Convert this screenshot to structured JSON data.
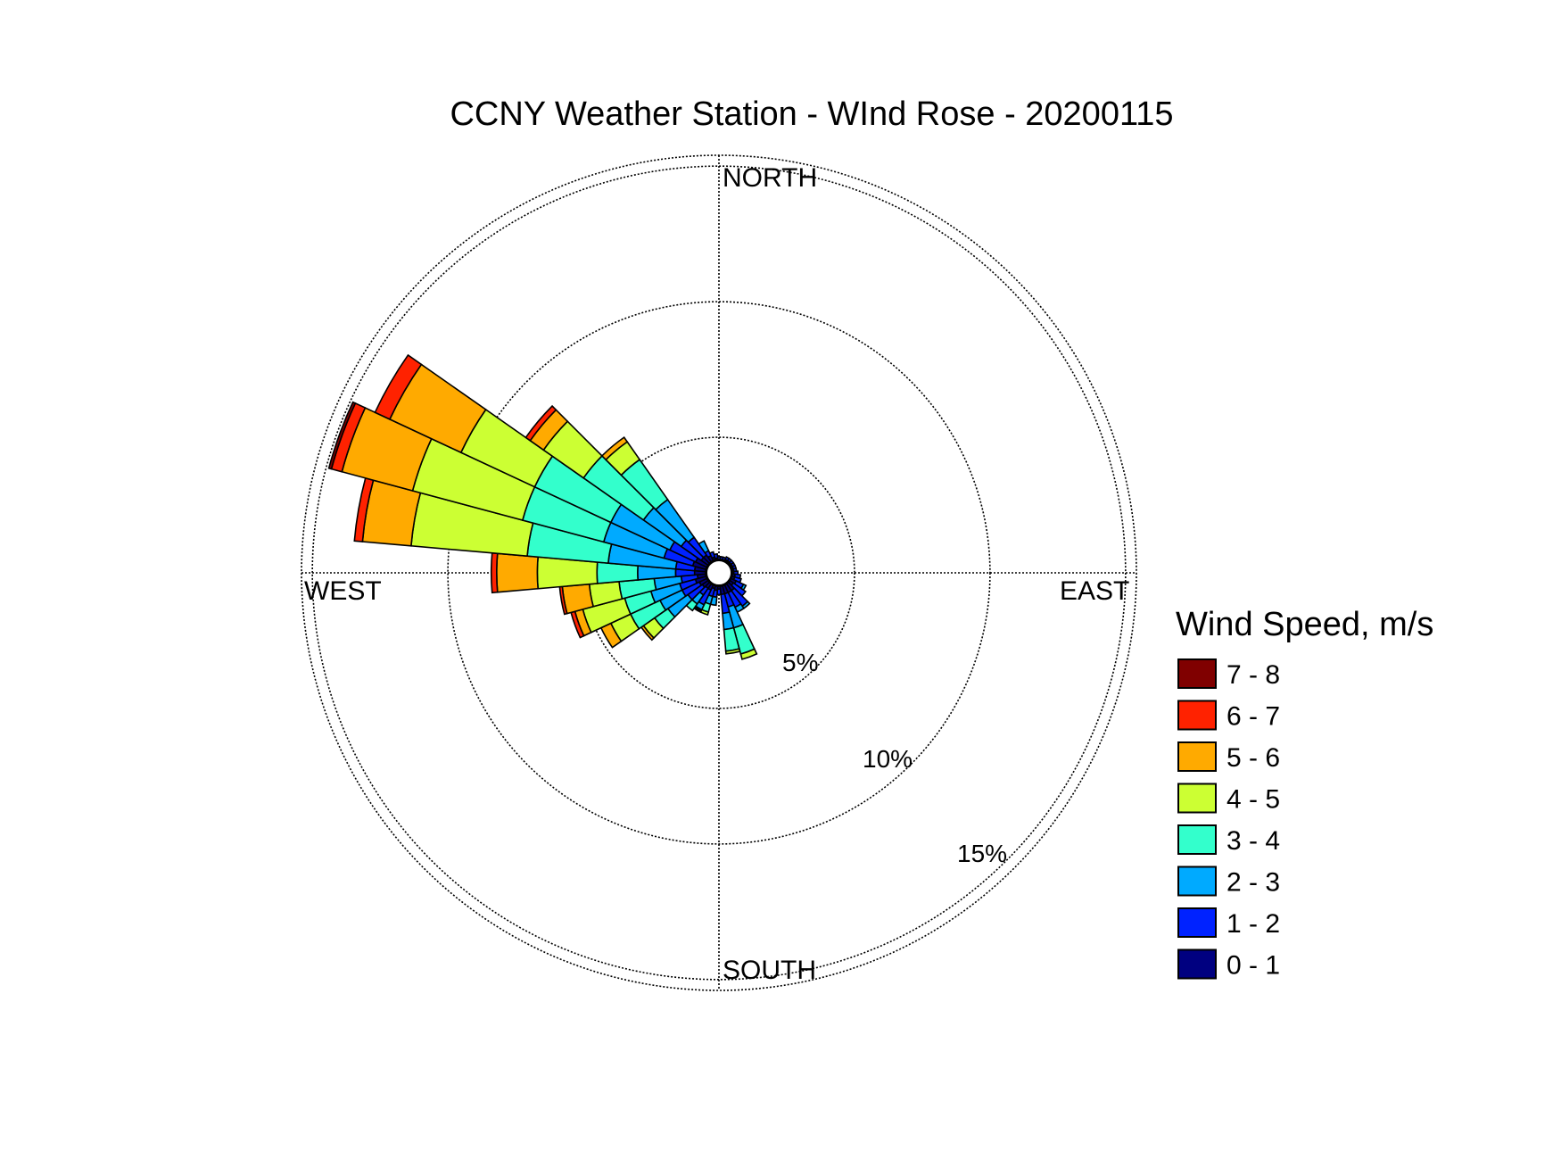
{
  "chart_data": {
    "type": "wind-rose",
    "title": "CCNY Weather Station - WInd Rose - 20200115",
    "directions": {
      "north": "NORTH",
      "south": "SOUTH",
      "east": "EAST",
      "west": "WEST"
    },
    "ring_values": [
      5,
      10,
      15
    ],
    "ring_labels": [
      "5%",
      "10%",
      "15%"
    ],
    "rmax": 15.4,
    "legend_title": "Wind Speed, m/s",
    "bins": [
      {
        "label": "0 - 1",
        "color": "#000080"
      },
      {
        "label": "1 - 2",
        "color": "#0022ff"
      },
      {
        "label": "2 - 3",
        "color": "#00aaff"
      },
      {
        "label": "3 - 4",
        "color": "#33ffcc"
      },
      {
        "label": "4 - 5",
        "color": "#ccff33"
      },
      {
        "label": "5 - 6",
        "color": "#ffaa00"
      },
      {
        "label": "6 - 7",
        "color": "#ff2200"
      },
      {
        "label": "7 - 8",
        "color": "#800000"
      }
    ],
    "sector_width_deg": 10,
    "sectors": [
      {
        "dir": 0,
        "cum": [
          0.5,
          0.6
        ]
      },
      {
        "dir": 10,
        "cum": [
          0.5,
          0.6
        ]
      },
      {
        "dir": 20,
        "cum": [
          0.5,
          0.6
        ]
      },
      {
        "dir": 30,
        "cum": [
          0.55,
          0.65
        ]
      },
      {
        "dir": 40,
        "cum": [
          0.55,
          0.65
        ]
      },
      {
        "dir": 50,
        "cum": [
          0.55,
          0.65
        ]
      },
      {
        "dir": 60,
        "cum": [
          0.55,
          0.65
        ]
      },
      {
        "dir": 70,
        "cum": [
          0.55,
          0.65
        ]
      },
      {
        "dir": 80,
        "cum": [
          0.55,
          0.65
        ]
      },
      {
        "dir": 90,
        "cum": [
          0.55,
          0.7
        ]
      },
      {
        "dir": 100,
        "cum": [
          0.6,
          0.8
        ]
      },
      {
        "dir": 110,
        "cum": [
          0.6,
          0.85
        ]
      },
      {
        "dir": 120,
        "cum": [
          0.7,
          1.0,
          1.1
        ]
      },
      {
        "dir": 130,
        "cum": [
          0.65,
          1.2
        ]
      },
      {
        "dir": 140,
        "cum": [
          0.8,
          1.5,
          1.6
        ]
      },
      {
        "dir": 150,
        "cum": [
          0.8,
          1.4,
          1.6
        ]
      },
      {
        "dir": 160,
        "cum": [
          0.8,
          1.3,
          2.1,
          3.1,
          3.3
        ]
      },
      {
        "dir": 170,
        "cum": [
          0.8,
          1.5,
          2.1,
          2.9,
          3.0
        ]
      },
      {
        "dir": 180,
        "cum": [
          0.6,
          0.8
        ]
      },
      {
        "dir": 190,
        "cum": [
          0.65,
          0.9,
          1.2
        ]
      },
      {
        "dir": 200,
        "cum": [
          0.6,
          0.9,
          1.2,
          1.5,
          1.6
        ]
      },
      {
        "dir": 210,
        "cum": [
          0.7,
          1.3,
          1.5,
          1.55,
          1.6
        ]
      },
      {
        "dir": 220,
        "cum": [
          0.7,
          1.0,
          1.4,
          1.7
        ]
      },
      {
        "dir": 230,
        "cum": [
          0.75,
          1.4,
          2.3,
          2.9,
          3.4,
          3.5
        ]
      },
      {
        "dir": 240,
        "cum": [
          0.8,
          1.5,
          2.4,
          3.6,
          4.4,
          4.8
        ]
      },
      {
        "dir": 250,
        "cum": [
          0.9,
          1.5,
          2.6,
          3.6,
          5.2,
          5.5,
          5.65
        ]
      },
      {
        "dir": 260,
        "cum": [
          0.8,
          1.4,
          2.4,
          3.7,
          4.8,
          5.8,
          5.9
        ]
      },
      {
        "dir": 270,
        "cum": [
          0.9,
          1.6,
          3.0,
          4.5,
          6.7,
          8.2,
          8.4
        ]
      },
      {
        "dir": 280,
        "cum": [
          0.9,
          1.6,
          4.1,
          7.1,
          11.4,
          13.2,
          13.5
        ]
      },
      {
        "dir": 290,
        "cum": [
          1.0,
          2.1,
          4.4,
          7.5,
          11.7,
          14.4,
          14.8,
          14.9
        ]
      },
      {
        "dir": 300,
        "cum": [
          0.95,
          2.0,
          4.4,
          7.5,
          10.5,
          13.4,
          14.0
        ]
      },
      {
        "dir": 310,
        "cum": [
          0.8,
          1.7,
          3.4,
          6.1,
          7.9,
          8.5,
          8.7
        ]
      },
      {
        "dir": 320,
        "cum": [
          0.8,
          1.6,
          3.3,
          5.1,
          5.9,
          6.1
        ]
      },
      {
        "dir": 330,
        "cum": [
          0.7,
          0.9,
          1.3
        ]
      },
      {
        "dir": 340,
        "cum": [
          0.6,
          0.8
        ]
      },
      {
        "dir": 350,
        "cum": [
          0.55,
          0.7
        ]
      }
    ]
  }
}
